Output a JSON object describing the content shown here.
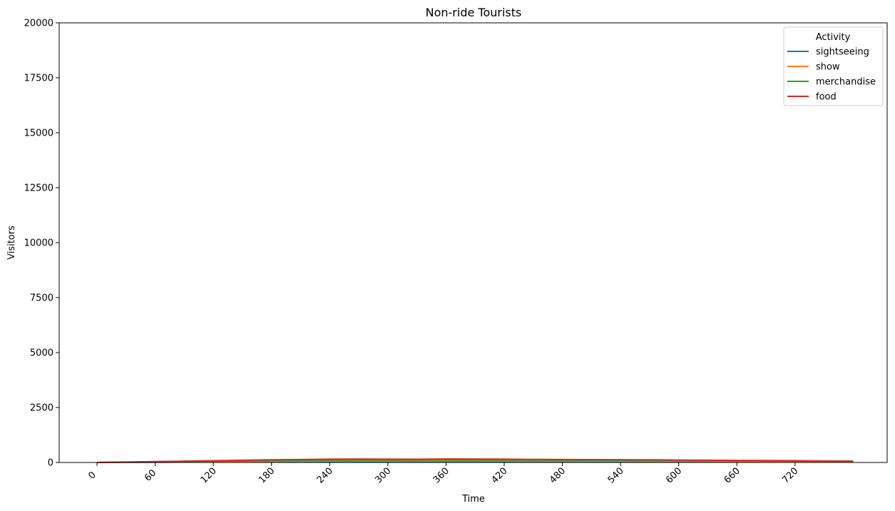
{
  "chart_data": {
    "type": "line",
    "title": "Non-ride Tourists",
    "xlabel": "Time",
    "ylabel": "Visitors",
    "xlim": [
      -39,
      815
    ],
    "ylim": [
      0,
      20000
    ],
    "xticks": [
      0,
      60,
      120,
      180,
      240,
      300,
      360,
      420,
      480,
      540,
      600,
      660,
      720
    ],
    "yticks": [
      0,
      2500,
      5000,
      7500,
      10000,
      12500,
      15000,
      17500,
      20000
    ],
    "grid": false,
    "legend": {
      "title": "Activity",
      "placement": "top-right"
    },
    "x": [
      0,
      30,
      60,
      90,
      120,
      150,
      180,
      210,
      240,
      270,
      300,
      330,
      360,
      390,
      420,
      450,
      480,
      510,
      540,
      570,
      600,
      630,
      660,
      690,
      720,
      750,
      780
    ],
    "series": [
      {
        "name": "sightseeing",
        "color": "#1f77b4",
        "values": [
          0,
          5,
          10,
          15,
          20,
          25,
          30,
          33,
          35,
          37,
          38,
          38,
          38,
          37,
          36,
          35,
          34,
          33,
          32,
          31,
          30,
          28,
          26,
          24,
          22,
          20,
          18
        ]
      },
      {
        "name": "show",
        "color": "#ff7f0e",
        "values": [
          0,
          10,
          20,
          30,
          40,
          50,
          60,
          65,
          70,
          72,
          74,
          75,
          75,
          74,
          72,
          70,
          68,
          66,
          64,
          62,
          60,
          56,
          52,
          48,
          44,
          40,
          36
        ]
      },
      {
        "name": "merchandise",
        "color": "#2ca02c",
        "values": [
          0,
          15,
          30,
          45,
          60,
          75,
          90,
          98,
          105,
          108,
          110,
          112,
          112,
          110,
          108,
          105,
          102,
          99,
          96,
          93,
          90,
          84,
          78,
          72,
          66,
          60,
          54
        ]
      },
      {
        "name": "food",
        "color": "#d62728",
        "values": [
          0,
          20,
          40,
          60,
          80,
          100,
          120,
          135,
          150,
          155,
          150,
          145,
          160,
          155,
          150,
          140,
          135,
          130,
          125,
          120,
          110,
          100,
          95,
          90,
          80,
          70,
          60
        ]
      }
    ]
  }
}
